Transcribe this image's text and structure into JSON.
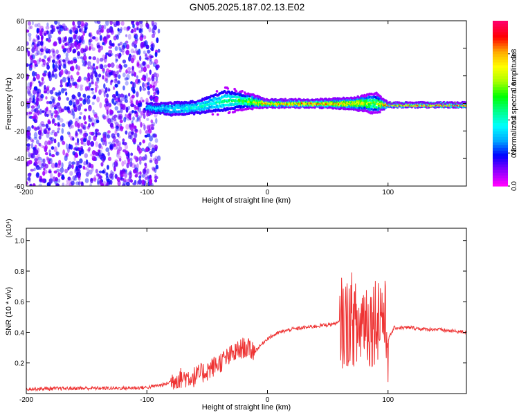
{
  "title": "GN05.2025.187.02.13.E02",
  "colors": {
    "snr_line": "#ee3333",
    "frame": "#000000"
  },
  "chart_data": [
    {
      "type": "heatmap",
      "xlabel": "Height of straight line (km)",
      "ylabel": "Frequency (Hz)",
      "xlim": [
        -200,
        165
      ],
      "ylim": [
        -60,
        60
      ],
      "x_ticks": [
        -200,
        -100,
        0,
        100
      ],
      "y_ticks": [
        -60,
        -40,
        -20,
        0,
        20,
        40,
        60
      ],
      "x_tick_labels": [
        "-200",
        "-100",
        "0",
        "100"
      ],
      "y_tick_labels": [
        "-60",
        "-40",
        "-20",
        "0",
        "20",
        "40",
        "60"
      ],
      "colorbar": {
        "label": "Normalized spectral amplitude",
        "range": [
          0,
          1
        ],
        "ticks": [
          0.0,
          0.2,
          0.4,
          0.6,
          0.8
        ],
        "tick_labels": [
          "0.0",
          "0.2",
          "0.4",
          "0.6",
          "0.8"
        ],
        "colors": [
          "#ff00ff",
          "#8800ff",
          "#0000ff",
          "#00aaff",
          "#00ffff",
          "#00ff88",
          "#00ff00",
          "#aaff00",
          "#ffff00",
          "#ffaa00",
          "#ff0000",
          "#ff0066"
        ]
      },
      "features": {
        "noise_region": {
          "x_range": [
            -200,
            -90
          ],
          "amplitude": 0.15
        },
        "signal_band": [
          {
            "x": -100,
            "freq_center": -3,
            "half_width": 3,
            "amplitude": 0.35
          },
          {
            "x": -80,
            "freq_center": -4,
            "half_width": 5,
            "amplitude": 0.35
          },
          {
            "x": -60,
            "freq_center": -3,
            "half_width": 5,
            "amplitude": 0.4
          },
          {
            "x": -35,
            "freq_center": 2,
            "half_width": 8,
            "amplitude": 0.45
          },
          {
            "x": -20,
            "freq_center": 2,
            "half_width": 5,
            "amplitude": 0.55
          },
          {
            "x": 0,
            "freq_center": 0,
            "half_width": 2,
            "amplitude": 0.85
          },
          {
            "x": 40,
            "freq_center": 0,
            "half_width": 2,
            "amplitude": 0.9
          },
          {
            "x": 70,
            "freq_center": 0,
            "half_width": 3,
            "amplitude": 0.8
          },
          {
            "x": 90,
            "freq_center": 0,
            "half_width": 6,
            "amplitude": 0.6
          },
          {
            "x": 100,
            "freq_center": -1,
            "half_width": 1,
            "amplitude": 0.95
          },
          {
            "x": 165,
            "freq_center": -1,
            "half_width": 1,
            "amplitude": 0.95
          }
        ]
      }
    },
    {
      "type": "line",
      "xlabel": "Height of straight line (km)",
      "ylabel": "SNR (10 * v/v)",
      "y_scale_label": "(x10⁴)",
      "xlim": [
        -200,
        165
      ],
      "ylim": [
        0,
        1.08
      ],
      "x_ticks": [
        -200,
        -100,
        0,
        100
      ],
      "y_ticks": [
        0.2,
        0.4,
        0.6,
        0.8,
        1.0
      ],
      "x_tick_labels": [
        "-200",
        "-100",
        "0",
        "100"
      ],
      "y_tick_labels": [
        "0.2",
        "0.4",
        "0.6",
        "0.8",
        "1.0"
      ],
      "series": [
        {
          "x": [
            -200,
            -150,
            -120,
            -100,
            -85,
            -75,
            -60,
            -50,
            -40,
            -30,
            -20,
            -10,
            0,
            10,
            20,
            30,
            40,
            50,
            58,
            60,
            65,
            70,
            75,
            80,
            85,
            90,
            95,
            100,
            105,
            110,
            120,
            130,
            140,
            150,
            165
          ],
          "y": [
            0.03,
            0.035,
            0.035,
            0.04,
            0.06,
            0.1,
            0.11,
            0.15,
            0.2,
            0.25,
            0.3,
            0.28,
            0.36,
            0.4,
            0.42,
            0.43,
            0.44,
            0.45,
            0.46,
            0.47,
            0.45,
            0.5,
            0.4,
            0.52,
            0.45,
            0.5,
            0.55,
            0.35,
            0.43,
            0.43,
            0.43,
            0.42,
            0.42,
            0.41,
            0.4
          ]
        }
      ]
    }
  ]
}
